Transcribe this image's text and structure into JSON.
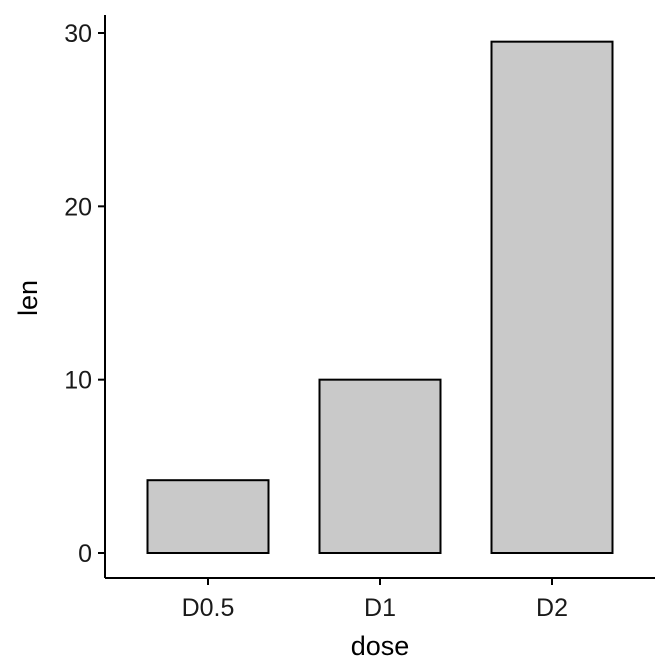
{
  "chart_data": {
    "type": "bar",
    "categories": [
      "D0.5",
      "D1",
      "D2"
    ],
    "values": [
      4.2,
      10.0,
      29.5
    ],
    "xlabel": "dose",
    "ylabel": "len",
    "ylim": [
      0,
      30
    ],
    "yticks": [
      0,
      10,
      20,
      30
    ],
    "grid": false,
    "bar_fill": "#c9c9c9",
    "bar_stroke": "#000000"
  }
}
